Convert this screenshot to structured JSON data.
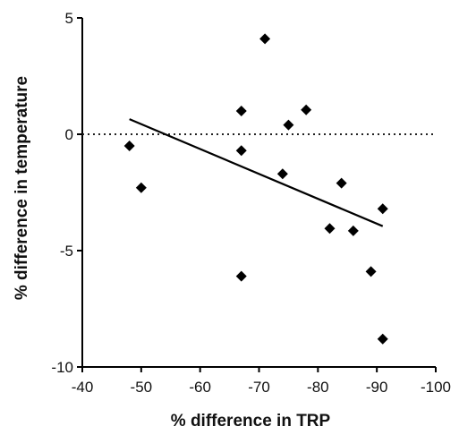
{
  "chart_data": {
    "type": "scatter",
    "xlabel": "% difference in TRP",
    "ylabel": "% difference in temperature",
    "xlim": [
      -40,
      -100
    ],
    "ylim": [
      -10,
      5
    ],
    "x_ticks": [
      -40,
      -50,
      -60,
      -70,
      -80,
      -90,
      -100
    ],
    "y_ticks": [
      5,
      0,
      -5,
      -10
    ],
    "x_tick_labels": [
      "-40",
      "-50",
      "-60",
      "-70",
      "-80",
      "-90",
      "-100"
    ],
    "y_tick_labels": [
      "5",
      "0",
      "-5",
      "-10"
    ],
    "grid": false,
    "reference_line": {
      "y": 0,
      "style": "dotted"
    },
    "marker": "diamond",
    "points": [
      {
        "x": -48,
        "y": -0.5
      },
      {
        "x": -50,
        "y": -2.3
      },
      {
        "x": -67,
        "y": 1.0
      },
      {
        "x": -67,
        "y": -0.7
      },
      {
        "x": -67,
        "y": -6.1
      },
      {
        "x": -71,
        "y": 4.1
      },
      {
        "x": -74,
        "y": -1.7
      },
      {
        "x": -75,
        "y": 0.4
      },
      {
        "x": -78,
        "y": 1.05
      },
      {
        "x": -82,
        "y": -4.05
      },
      {
        "x": -84,
        "y": -2.1
      },
      {
        "x": -86,
        "y": -4.15
      },
      {
        "x": -89,
        "y": -5.9
      },
      {
        "x": -91,
        "y": -3.2
      },
      {
        "x": -91,
        "y": -8.8
      }
    ],
    "regression_line": {
      "x": [
        -48,
        -91
      ],
      "y": [
        0.65,
        -3.95
      ]
    },
    "colors": {
      "marker": "#000000",
      "line": "#000000",
      "axis": "#000000"
    }
  }
}
